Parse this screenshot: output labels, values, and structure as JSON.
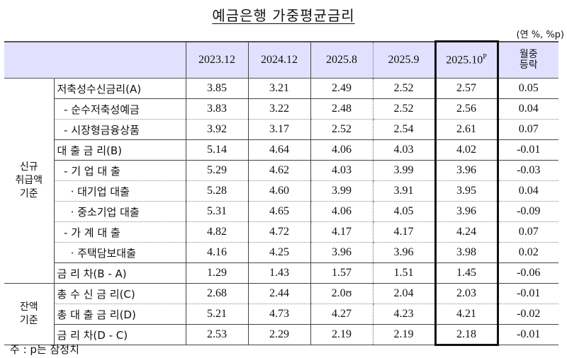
{
  "title": "예금은행 가중평균금리",
  "unit": "(연 %, %p)",
  "header": {
    "columns": [
      "2023.12",
      "2024.12",
      "2025.8",
      "2025.9",
      "2025.10",
      "월중\n등락"
    ],
    "highlight_sup": "P",
    "change_line1": "월중",
    "change_line2": "등락"
  },
  "groups": {
    "new": "신규\n취급액\n기준",
    "balance": "잔액\n기준"
  },
  "rows": [
    {
      "label": "저축성수신금리(A)",
      "values": [
        "3.85",
        "3.21",
        "2.49",
        "2.52",
        "2.57",
        "0.05"
      ]
    },
    {
      "label": "  - 순수저축성예금",
      "values": [
        "3.83",
        "3.22",
        "2.48",
        "2.52",
        "2.56",
        "0.04"
      ]
    },
    {
      "label": "  - 시장형금융상품",
      "values": [
        "3.92",
        "3.17",
        "2.52",
        "2.54",
        "2.61",
        "0.07"
      ]
    },
    {
      "label": "대 출 금 리(B)",
      "values": [
        "5.14",
        "4.64",
        "4.06",
        "4.03",
        "4.02",
        "-0.01"
      ]
    },
    {
      "label": "  - 기 업 대 출",
      "values": [
        "5.29",
        "4.62",
        "4.03",
        "3.99",
        "3.96",
        "-0.03"
      ]
    },
    {
      "label": "    · 대기업 대출",
      "values": [
        "5.28",
        "4.60",
        "3.99",
        "3.91",
        "3.95",
        "0.04"
      ]
    },
    {
      "label": "    · 중소기업 대출",
      "values": [
        "5.31",
        "4.65",
        "4.06",
        "4.05",
        "3.96",
        "-0.09"
      ]
    },
    {
      "label": "  - 가 계 대 출",
      "values": [
        "4.82",
        "4.72",
        "4.17",
        "4.17",
        "4.24",
        "0.07"
      ]
    },
    {
      "label": "    · 주택담보대출",
      "values": [
        "4.16",
        "4.25",
        "3.96",
        "3.96",
        "3.98",
        "0.02"
      ]
    },
    {
      "label": "금 리 차(B - A)",
      "values": [
        "1.29",
        "1.43",
        "1.57",
        "1.51",
        "1.45",
        "-0.06"
      ]
    },
    {
      "label": "총 수 신 금 리(C)",
      "values": [
        "2.68",
        "2.44",
        "2.0ʊ",
        "2.04",
        "2.03",
        "-0.01"
      ]
    },
    {
      "label": "총 대 출 금 리(D)",
      "values": [
        "5.21",
        "4.73",
        "4.27",
        "4.23",
        "4.21",
        "-0.02"
      ]
    },
    {
      "label": "금 리 차(D - C)",
      "values": [
        "2.53",
        "2.29",
        "2.19",
        "2.19",
        "2.18",
        "-0.01"
      ]
    }
  ],
  "note": "주 : p는 잠정치",
  "colors": {
    "header_bg": "#e1e1ff",
    "highlight_border": "#111111"
  }
}
